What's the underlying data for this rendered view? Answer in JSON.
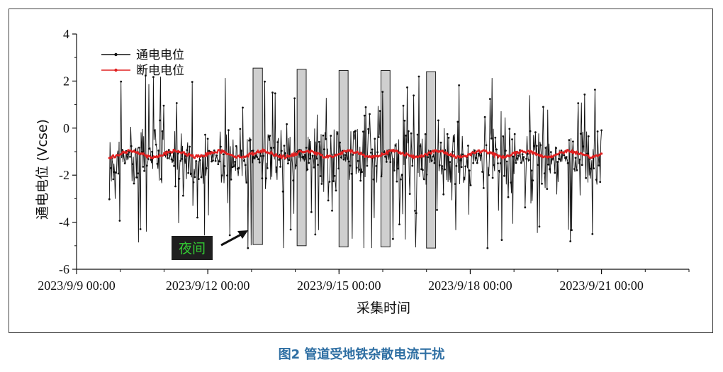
{
  "caption": "图2 管道受地铁杂散电流干扰",
  "chart_data": {
    "type": "line",
    "xlabel": "采集时间",
    "ylabel": "通电电位 (Vcse)",
    "ylim": [
      -6,
      4
    ],
    "yticks": [
      4,
      2,
      0,
      -2,
      -4,
      -6
    ],
    "xlim": [
      "2023-09-09 00:00",
      "2023-09-23 00:00"
    ],
    "xticks": [
      {
        "t": "2023-09-09 00:00",
        "label": "2023/9/9 00:00"
      },
      {
        "t": "2023-09-12 00:00",
        "label": "2023/9/12 00:00"
      },
      {
        "t": "2023-09-15 00:00",
        "label": "2023/9/15 00:00"
      },
      {
        "t": "2023-09-18 00:00",
        "label": "2023/9/18 00:00"
      },
      {
        "t": "2023-09-21 00:00",
        "label": "2023/9/21 00:00"
      }
    ],
    "grid": false,
    "legend": "top-left",
    "series": [
      {
        "name": "通电电位",
        "color": "#111111",
        "style": "line-with-markers",
        "range": [
          "2023-09-09 18:00",
          "2023-09-21 00:00"
        ],
        "baseline": -1.2,
        "min": -5.1,
        "max": 2.8
      },
      {
        "name": "断电电位",
        "color": "#e02020",
        "style": "line-with-markers",
        "range": [
          "2023-09-09 18:00",
          "2023-09-21 00:00"
        ],
        "baseline": -1.1,
        "min": -1.3,
        "max": -0.9
      }
    ],
    "night_bands": [
      {
        "start": "2023-09-13 00:50",
        "end": "2023-09-13 06:00",
        "top": 2.55,
        "bottom": -4.95
      },
      {
        "start": "2023-09-14 01:00",
        "end": "2023-09-14 06:00",
        "top": 2.5,
        "bottom": -5.0
      },
      {
        "start": "2023-09-15 00:00",
        "end": "2023-09-15 05:00",
        "top": 2.45,
        "bottom": -5.05
      },
      {
        "start": "2023-09-15 23:00",
        "end": "2023-09-16 04:00",
        "top": 2.45,
        "bottom": -5.05
      },
      {
        "start": "2023-09-17 00:00",
        "end": "2023-09-17 05:00",
        "top": 2.4,
        "bottom": -5.1
      }
    ],
    "annotations": [
      {
        "text": "夜间",
        "box_color": "#1f1f1f",
        "text_color": "#33cc33",
        "arrow": true
      }
    ]
  }
}
